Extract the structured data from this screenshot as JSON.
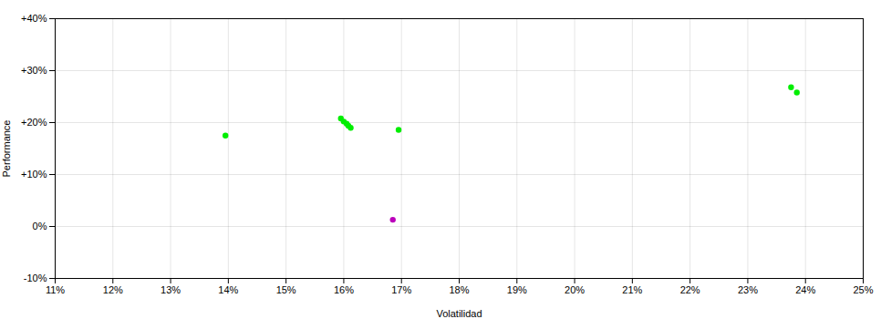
{
  "chart_data": {
    "type": "scatter",
    "xlabel": "Volatilidad",
    "ylabel": "Performance",
    "xlim": [
      0.11,
      0.25
    ],
    "ylim": [
      -0.1,
      0.4
    ],
    "xticks": [
      {
        "value": 0.11,
        "label": "11%"
      },
      {
        "value": 0.12,
        "label": "12%"
      },
      {
        "value": 0.13,
        "label": "13%"
      },
      {
        "value": 0.14,
        "label": "14%"
      },
      {
        "value": 0.15,
        "label": "15%"
      },
      {
        "value": 0.16,
        "label": "16%"
      },
      {
        "value": 0.17,
        "label": "17%"
      },
      {
        "value": 0.18,
        "label": "18%"
      },
      {
        "value": 0.19,
        "label": "19%"
      },
      {
        "value": 0.2,
        "label": "20%"
      },
      {
        "value": 0.21,
        "label": "21%"
      },
      {
        "value": 0.22,
        "label": "22%"
      },
      {
        "value": 0.23,
        "label": "23%"
      },
      {
        "value": 0.24,
        "label": "24%"
      },
      {
        "value": 0.25,
        "label": "25%"
      }
    ],
    "yticks": [
      {
        "value": -0.1,
        "label": "-10%"
      },
      {
        "value": 0.0,
        "label": "0%"
      },
      {
        "value": 0.1,
        "label": "+10%"
      },
      {
        "value": 0.2,
        "label": "+20%"
      },
      {
        "value": 0.3,
        "label": "+30%"
      },
      {
        "value": 0.4,
        "label": "+40%"
      }
    ],
    "grid": true,
    "series": [
      {
        "color": "#00ee00",
        "x": [
          0.1395,
          0.1595,
          0.16,
          0.1605,
          0.1608,
          0.1612,
          0.1695,
          0.2375,
          0.2385
        ],
        "values": [
          0.175,
          0.208,
          0.202,
          0.198,
          0.194,
          0.19,
          0.186,
          0.268,
          0.258
        ]
      },
      {
        "color": "#bb00bb",
        "x": [
          0.1685
        ],
        "values": [
          0.013
        ]
      }
    ]
  }
}
